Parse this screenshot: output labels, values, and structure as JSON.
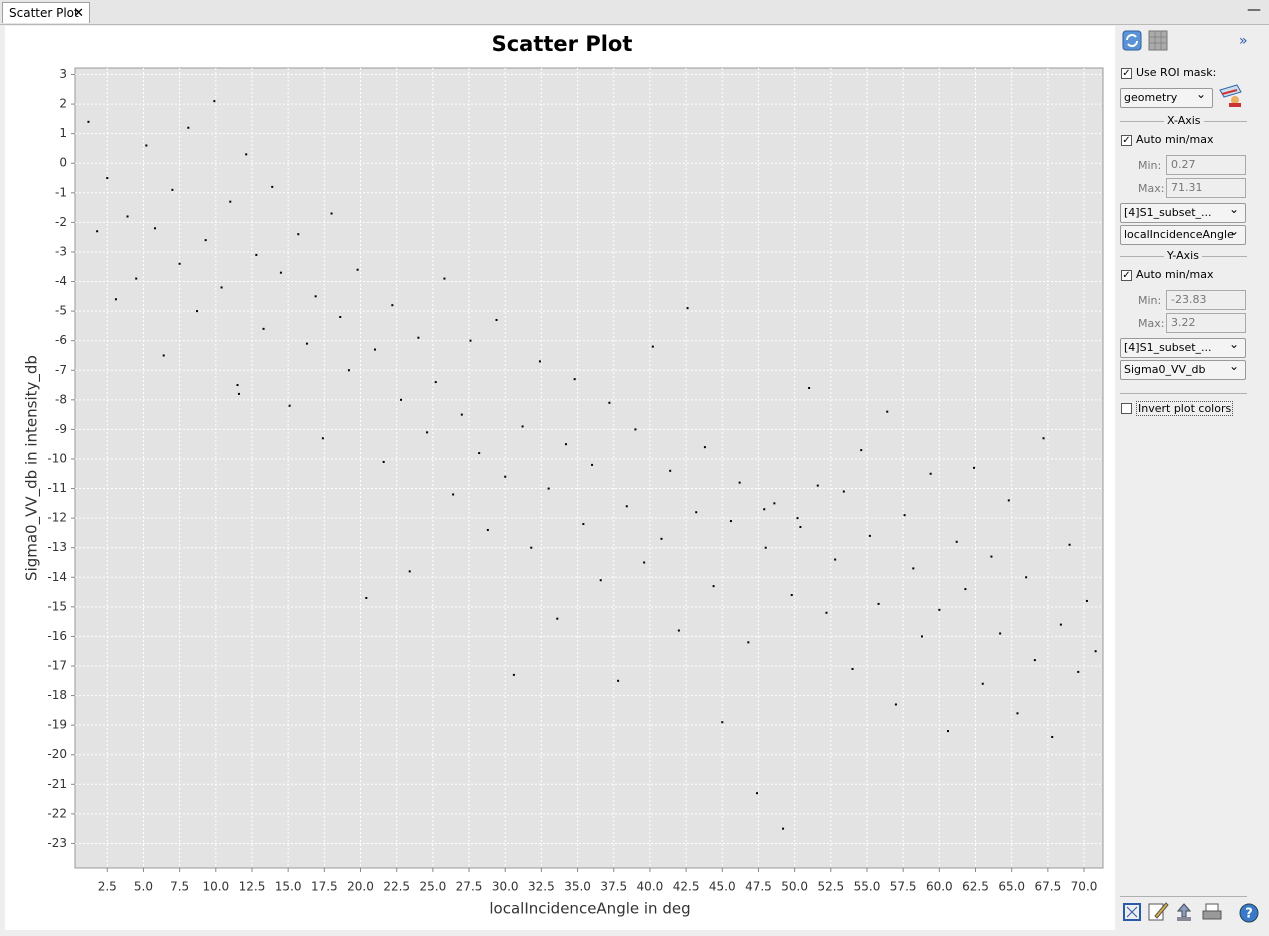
{
  "tab": {
    "title": "Scatter Plot"
  },
  "chart_data": {
    "type": "scatter",
    "title": "Scatter Plot",
    "x_label": "localIncidenceAngle in deg",
    "y_label": "Sigma0_VV_db in intensity_db",
    "color": "#000000",
    "grid": true,
    "xlim": [
      0.27,
      71.31
    ],
    "ylim": [
      -23.83,
      3.22
    ],
    "xticks": [
      2.5,
      {
        "value": 5,
        "label": "5.0"
      },
      7.5,
      {
        "value": 10,
        "label": "10.0"
      },
      12.5,
      {
        "value": 15,
        "label": "15.0"
      },
      17.5,
      {
        "value": 20,
        "label": "20.0"
      },
      22.5,
      {
        "value": 25,
        "label": "25.0"
      },
      27.5,
      {
        "value": 30,
        "label": "30.0"
      },
      32.5,
      {
        "value": 35,
        "label": "35.0"
      },
      37.5,
      {
        "value": 40,
        "label": "40.0"
      },
      42.5,
      {
        "value": 45,
        "label": "45.0"
      },
      47.5,
      {
        "value": 50,
        "label": "50.0"
      },
      52.5,
      {
        "value": 55,
        "label": "55.0"
      },
      57.5,
      {
        "value": 60,
        "label": "60.0"
      },
      62.5,
      {
        "value": 65,
        "label": "65.0"
      },
      67.5,
      {
        "value": 70,
        "label": "70.0"
      }
    ],
    "yticks": [
      3,
      2,
      1,
      0,
      -1,
      -2,
      -3,
      -4,
      -5,
      -6,
      -7,
      -8,
      -9,
      -10,
      -11,
      -12,
      -13,
      -14,
      -15,
      -16,
      -17,
      -18,
      -19,
      -20,
      -21,
      -22,
      -23
    ],
    "x": [
      1.2,
      1.8,
      2.5,
      3.1,
      3.9,
      4.5,
      5.2,
      5.8,
      6.4,
      7.0,
      7.5,
      8.1,
      8.7,
      9.3,
      9.9,
      10.4,
      11.0,
      11.6,
      12.1,
      12.8,
      13.3,
      13.9,
      14.5,
      15.1,
      15.7,
      16.3,
      16.9,
      17.4,
      18.0,
      18.6,
      19.2,
      19.8,
      20.4,
      21.0,
      21.6,
      22.2,
      22.8,
      23.4,
      24.0,
      24.6,
      25.2,
      25.8,
      26.4,
      27.0,
      27.6,
      28.2,
      28.8,
      29.4,
      30.0,
      30.6,
      31.2,
      31.8,
      32.4,
      33.0,
      33.6,
      34.2,
      34.8,
      35.4,
      36.0,
      36.6,
      37.2,
      37.8,
      38.4,
      39.0,
      39.6,
      40.2,
      40.8,
      41.4,
      42.0,
      42.6,
      43.2,
      43.8,
      44.4,
      45.0,
      45.6,
      46.2,
      46.8,
      47.4,
      48.0,
      48.6,
      49.2,
      49.8,
      50.4,
      51.0,
      51.6,
      52.2,
      52.8,
      53.4,
      54.0,
      54.6,
      55.2,
      55.8,
      56.4,
      57.0,
      57.6,
      58.2,
      58.8,
      59.4,
      60.0,
      60.6,
      61.2,
      61.8,
      62.4,
      63.0,
      63.6,
      64.2,
      64.8,
      65.4,
      66.0,
      66.6,
      67.2,
      67.8,
      68.4,
      69.0,
      69.6,
      70.2,
      70.8,
      11.5,
      47.9,
      50.2
    ],
    "values": [
      1.4,
      -2.3,
      -0.5,
      -4.6,
      -1.8,
      -3.9,
      0.6,
      -2.2,
      -6.5,
      -0.9,
      -3.4,
      1.2,
      -5.0,
      -2.6,
      2.1,
      -4.2,
      -1.3,
      -7.8,
      0.3,
      -3.1,
      -5.6,
      -0.8,
      -3.7,
      -8.2,
      -2.4,
      -6.1,
      -4.5,
      -9.3,
      -1.7,
      -5.2,
      -7.0,
      -3.6,
      -14.7,
      -6.3,
      -10.1,
      -4.8,
      -8.0,
      -13.8,
      -5.9,
      -9.1,
      -7.4,
      -3.9,
      -11.2,
      -8.5,
      -6.0,
      -9.8,
      -12.4,
      -5.3,
      -10.6,
      -17.3,
      -8.9,
      -13.0,
      -6.7,
      -11.0,
      -15.4,
      -9.5,
      -7.3,
      -12.2,
      -10.2,
      -14.1,
      -8.1,
      -17.5,
      -11.6,
      -9.0,
      -13.5,
      -6.2,
      -12.7,
      -10.4,
      -15.8,
      -4.9,
      -11.8,
      -9.6,
      -14.3,
      -18.9,
      -12.1,
      -10.8,
      -16.2,
      -21.3,
      -13.0,
      -11.5,
      -22.5,
      -14.6,
      -12.3,
      -7.6,
      -10.9,
      -15.2,
      -13.4,
      -11.1,
      -17.1,
      -9.7,
      -12.6,
      -14.9,
      -8.4,
      -18.3,
      -11.9,
      -13.7,
      -16.0,
      -10.5,
      -15.1,
      -19.2,
      -12.8,
      -14.4,
      -10.3,
      -17.6,
      -13.3,
      -15.9,
      -11.4,
      -18.6,
      -14.0,
      -16.8,
      -9.3,
      -19.4,
      -15.6,
      -12.9,
      -17.2,
      -14.8,
      -16.5,
      -7.5,
      -11.7,
      -12.0
    ]
  },
  "panel": {
    "roi": {
      "label": "Use ROI mask:",
      "checked": true,
      "mask": "geometry"
    },
    "x_axis": {
      "title": "X-Axis",
      "auto_label": "Auto min/max",
      "auto": true,
      "min_label": "Min:",
      "min": "0.27",
      "max_label": "Max:",
      "max": "71.31",
      "product": "[4]S1_subset_...",
      "band": "localIncidenceAngle"
    },
    "y_axis": {
      "title": "Y-Axis",
      "auto_label": "Auto min/max",
      "auto": true,
      "min_label": "Min:",
      "min": "-23.83",
      "max_label": "Max:",
      "max": "3.22",
      "product": "[4]S1_subset_...",
      "band": "Sigma0_VV_db"
    },
    "invert": {
      "label": "Invert plot colors",
      "checked": false
    }
  }
}
